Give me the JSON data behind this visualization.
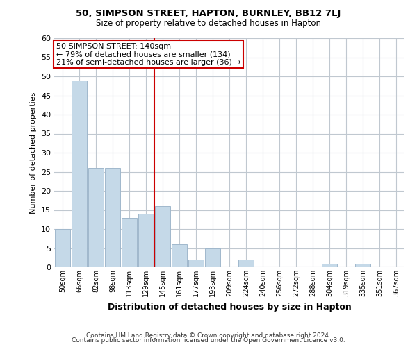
{
  "title1": "50, SIMPSON STREET, HAPTON, BURNLEY, BB12 7LJ",
  "title2": "Size of property relative to detached houses in Hapton",
  "xlabel": "Distribution of detached houses by size in Hapton",
  "ylabel": "Number of detached properties",
  "bin_labels": [
    "50sqm",
    "66sqm",
    "82sqm",
    "98sqm",
    "113sqm",
    "129sqm",
    "145sqm",
    "161sqm",
    "177sqm",
    "193sqm",
    "209sqm",
    "224sqm",
    "240sqm",
    "256sqm",
    "272sqm",
    "288sqm",
    "304sqm",
    "319sqm",
    "335sqm",
    "351sqm",
    "367sqm"
  ],
  "bar_heights": [
    10,
    49,
    26,
    26,
    13,
    14,
    16,
    6,
    2,
    5,
    0,
    2,
    0,
    0,
    0,
    0,
    1,
    0,
    1,
    0,
    0
  ],
  "bar_color": "#c5d9e8",
  "bar_edge_color": "#a0b8cc",
  "marker_line_index": 6,
  "marker_label": "50 SIMPSON STREET: 140sqm",
  "annotation_line1": "← 79% of detached houses are smaller (134)",
  "annotation_line2": "21% of semi-detached houses are larger (36) →",
  "annotation_box_color": "#ffffff",
  "annotation_box_edge": "#cc0000",
  "marker_line_color": "#cc0000",
  "ylim": [
    0,
    60
  ],
  "yticks": [
    0,
    5,
    10,
    15,
    20,
    25,
    30,
    35,
    40,
    45,
    50,
    55,
    60
  ],
  "footnote1": "Contains HM Land Registry data © Crown copyright and database right 2024.",
  "footnote2": "Contains public sector information licensed under the Open Government Licence v3.0.",
  "bg_color": "#ffffff",
  "grid_color": "#c0c8d0"
}
